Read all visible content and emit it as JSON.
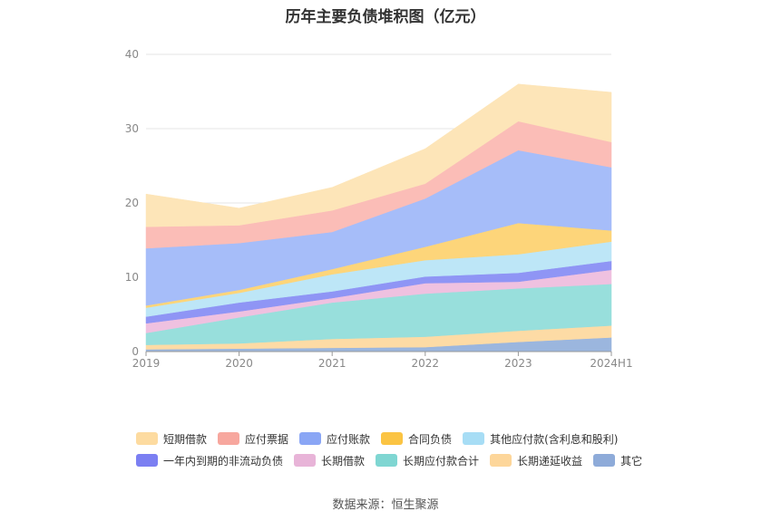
{
  "chart_data": {
    "type": "area",
    "stacked": true,
    "title": "历年主要负债堆积图（亿元）",
    "categories": [
      "2019",
      "2020",
      "2021",
      "2022",
      "2023",
      "2024H1"
    ],
    "ylim": [
      0,
      40
    ],
    "yticks": [
      0,
      10,
      20,
      30,
      40
    ],
    "grid": true,
    "legend_position": "bottom",
    "series": [
      {
        "name": "其它",
        "color": "#9bb6de",
        "values": [
          0.3,
          0.4,
          0.5,
          0.6,
          1.3,
          1.9
        ]
      },
      {
        "name": "长期递延收益",
        "color": "#fddba5",
        "values": [
          0.6,
          0.7,
          1.2,
          1.4,
          1.5,
          1.6
        ]
      },
      {
        "name": "长期应付款合计",
        "color": "#98dfdc",
        "values": [
          1.6,
          3.5,
          4.9,
          5.8,
          5.7,
          5.6
        ]
      },
      {
        "name": "长期借款",
        "color": "#efc1e0",
        "values": [
          1.3,
          0.8,
          0.6,
          1.4,
          0.9,
          1.9
        ]
      },
      {
        "name": "一年内到期的非流动负债",
        "color": "#8f95f5",
        "values": [
          0.9,
          1.2,
          0.9,
          0.9,
          1.2,
          1.2
        ]
      },
      {
        "name": "其他应付款(含利息和股利)",
        "color": "#bde6f7",
        "values": [
          1.2,
          1.3,
          2.3,
          2.2,
          2.5,
          2.6
        ]
      },
      {
        "name": "合同负债",
        "color": "#fdd57a",
        "values": [
          0.3,
          0.4,
          0.7,
          1.8,
          4.2,
          1.5
        ]
      },
      {
        "name": "应付账款",
        "color": "#a6bdf9",
        "values": [
          7.7,
          6.3,
          5.0,
          6.5,
          9.8,
          8.5
        ]
      },
      {
        "name": "应付票据",
        "color": "#fbbdb7",
        "values": [
          2.9,
          2.4,
          2.9,
          2.0,
          3.9,
          3.4
        ]
      },
      {
        "name": "短期借款",
        "color": "#fde5b8",
        "values": [
          4.4,
          2.3,
          3.1,
          4.7,
          5.0,
          6.7
        ]
      }
    ]
  },
  "legend": {
    "row1": [
      {
        "label": "短期借款",
        "color": "#fddba0"
      },
      {
        "label": "应付票据",
        "color": "#f7a79e"
      },
      {
        "label": "应付账款",
        "color": "#8aa6f5"
      },
      {
        "label": "合同负债",
        "color": "#fbc443"
      },
      {
        "label": "其他应付款(含利息和股利)",
        "color": "#a7ddf5"
      }
    ],
    "row2": [
      {
        "label": "一年内到期的非流动负债",
        "color": "#7b7ff2"
      },
      {
        "label": "长期借款",
        "color": "#e8b4d8"
      },
      {
        "label": "长期应付款合计",
        "color": "#7fd6d2"
      },
      {
        "label": "长期递延收益",
        "color": "#fdd69a"
      },
      {
        "label": "其它",
        "color": "#8eabd9"
      }
    ]
  },
  "source": "数据来源：恒生聚源"
}
